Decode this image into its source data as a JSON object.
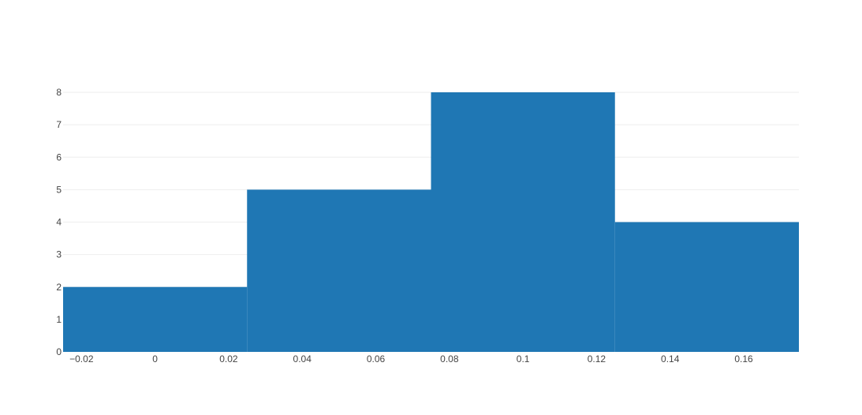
{
  "chart_data": {
    "type": "bar",
    "subtype": "histogram",
    "title": "",
    "xlabel": "",
    "ylabel": "",
    "bins": [
      {
        "x0": -0.025,
        "x1": 0.025,
        "count": 2
      },
      {
        "x0": 0.025,
        "x1": 0.075,
        "count": 5
      },
      {
        "x0": 0.075,
        "x1": 0.125,
        "count": 8
      },
      {
        "x0": 0.125,
        "x1": 0.175,
        "count": 4
      }
    ],
    "xlim": [
      -0.025,
      0.175
    ],
    "ylim": [
      0,
      8
    ],
    "x_ticks": [
      {
        "value": -0.02,
        "label": "−0.02"
      },
      {
        "value": 0,
        "label": "0"
      },
      {
        "value": 0.02,
        "label": "0.02"
      },
      {
        "value": 0.04,
        "label": "0.04"
      },
      {
        "value": 0.06,
        "label": "0.06"
      },
      {
        "value": 0.08,
        "label": "0.08"
      },
      {
        "value": 0.1,
        "label": "0.1"
      },
      {
        "value": 0.12,
        "label": "0.12"
      },
      {
        "value": 0.14,
        "label": "0.14"
      },
      {
        "value": 0.16,
        "label": "0.16"
      }
    ],
    "y_ticks": [
      {
        "value": 0,
        "label": "0"
      },
      {
        "value": 1,
        "label": "1"
      },
      {
        "value": 2,
        "label": "2"
      },
      {
        "value": 3,
        "label": "3"
      },
      {
        "value": 4,
        "label": "4"
      },
      {
        "value": 5,
        "label": "5"
      },
      {
        "value": 6,
        "label": "6"
      },
      {
        "value": 7,
        "label": "7"
      },
      {
        "value": 8,
        "label": "8"
      }
    ],
    "grid": true,
    "bar_color": "#1f77b4"
  }
}
